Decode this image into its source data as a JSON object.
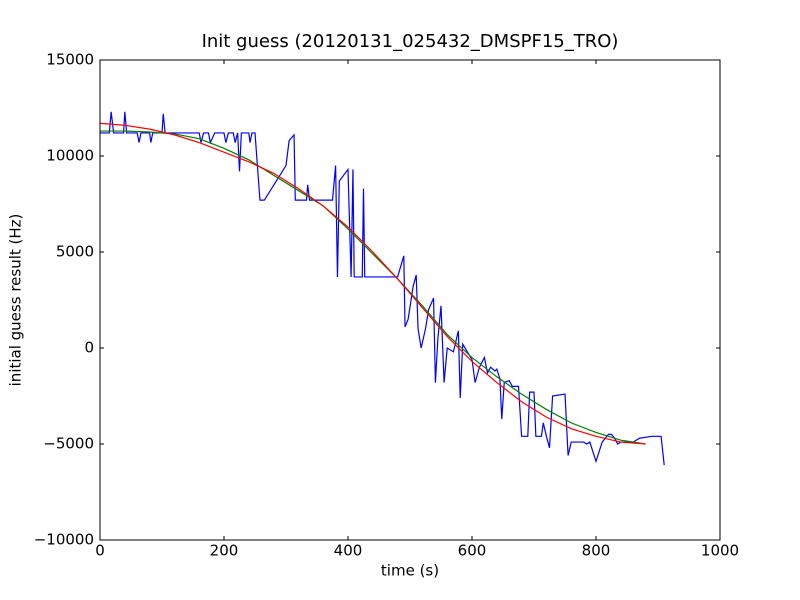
{
  "chart_data": {
    "type": "line",
    "title": "Init guess (20120131_025432_DMSPF15_TRO)",
    "xlabel": "time (s)",
    "ylabel": "initial guess result (Hz)",
    "xlim": [
      0,
      1000
    ],
    "ylim": [
      -10000,
      15000
    ],
    "xticks": [
      0,
      200,
      400,
      600,
      800,
      1000
    ],
    "yticks": [
      {
        "value": -10000,
        "label": "−10000"
      },
      {
        "value": -5000,
        "label": "−5000"
      },
      0,
      5000,
      10000,
      15000
    ],
    "grid": false,
    "series": [
      {
        "color": "#0000ff",
        "x": [
          0,
          15,
          18,
          22,
          38,
          40,
          43,
          60,
          63,
          66,
          80,
          82,
          85,
          100,
          102,
          105,
          160,
          163,
          167,
          175,
          178,
          185,
          200,
          203,
          207,
          215,
          218,
          222,
          225,
          228,
          240,
          242,
          245,
          250,
          258,
          265,
          300,
          305,
          313,
          315,
          333,
          335,
          338,
          375,
          380,
          383,
          386,
          393,
          400,
          405,
          408,
          410,
          423,
          425,
          427,
          480,
          490,
          492,
          497,
          505,
          510,
          513,
          518,
          525,
          530,
          538,
          541,
          545,
          550,
          555,
          560,
          570,
          578,
          581,
          585,
          600,
          605,
          612,
          620,
          625,
          630,
          637,
          640,
          645,
          648,
          652,
          660,
          665,
          675,
          680,
          690,
          693,
          700,
          703,
          712,
          715,
          720,
          725,
          730,
          750,
          755,
          760,
          780,
          785,
          790,
          800,
          810,
          820,
          825,
          830,
          835,
          840,
          860,
          870,
          890,
          905,
          910
        ],
        "values": [
          11200,
          11200,
          12300,
          11200,
          11200,
          12300,
          11200,
          11200,
          10700,
          11200,
          11200,
          10700,
          11200,
          11200,
          12200,
          11200,
          11200,
          10700,
          11200,
          11200,
          10700,
          11200,
          11200,
          10700,
          11200,
          11200,
          10700,
          11200,
          9200,
          11200,
          11200,
          10700,
          11200,
          11200,
          7700,
          7700,
          9500,
          10800,
          11100,
          7700,
          7700,
          8500,
          7700,
          7700,
          9500,
          3700,
          8700,
          9000,
          9300,
          3700,
          9300,
          3700,
          3700,
          8300,
          3700,
          3700,
          4800,
          1100,
          1500,
          3200,
          3800,
          1000,
          0,
          1000,
          2000,
          2600,
          -1800,
          500,
          2200,
          -1800,
          0,
          -200,
          900,
          -2600,
          200,
          -600,
          -1800,
          -1000,
          -500,
          -1300,
          -1000,
          -1200,
          -1100,
          -1600,
          -3700,
          -1800,
          -1700,
          -2000,
          -2000,
          -4600,
          -4600,
          -2300,
          -2300,
          -4600,
          -4600,
          -3900,
          -4600,
          -5200,
          -2500,
          -2400,
          -5600,
          -4900,
          -4900,
          -5000,
          -4900,
          -5900,
          -4900,
          -4500,
          -4500,
          -4700,
          -5000,
          -4900,
          -4900,
          -4700,
          -4600,
          -4600,
          -6100
        ]
      },
      {
        "color": "#008000",
        "x": [
          0,
          40,
          80,
          120,
          160,
          200,
          240,
          280,
          320,
          360,
          400,
          440,
          480,
          520,
          560,
          600,
          640,
          680,
          720,
          760,
          800,
          840,
          880
        ],
        "values": [
          11300,
          11300,
          11250,
          11150,
          10900,
          10400,
          9800,
          9000,
          8200,
          7400,
          6200,
          4900,
          3600,
          2200,
          700,
          -500,
          -1500,
          -2400,
          -3200,
          -3900,
          -4400,
          -4800,
          -5000
        ]
      },
      {
        "color": "#ff0000",
        "x": [
          0,
          40,
          80,
          120,
          160,
          200,
          240,
          280,
          320,
          360,
          400,
          440,
          480,
          520,
          560,
          600,
          640,
          680,
          720,
          760,
          800,
          840,
          880
        ],
        "values": [
          11700,
          11600,
          11400,
          11100,
          10700,
          10200,
          9700,
          9100,
          8300,
          7400,
          6300,
          5000,
          3600,
          2100,
          600,
          -700,
          -1800,
          -2800,
          -3600,
          -4200,
          -4600,
          -4900,
          -5000
        ]
      }
    ]
  }
}
